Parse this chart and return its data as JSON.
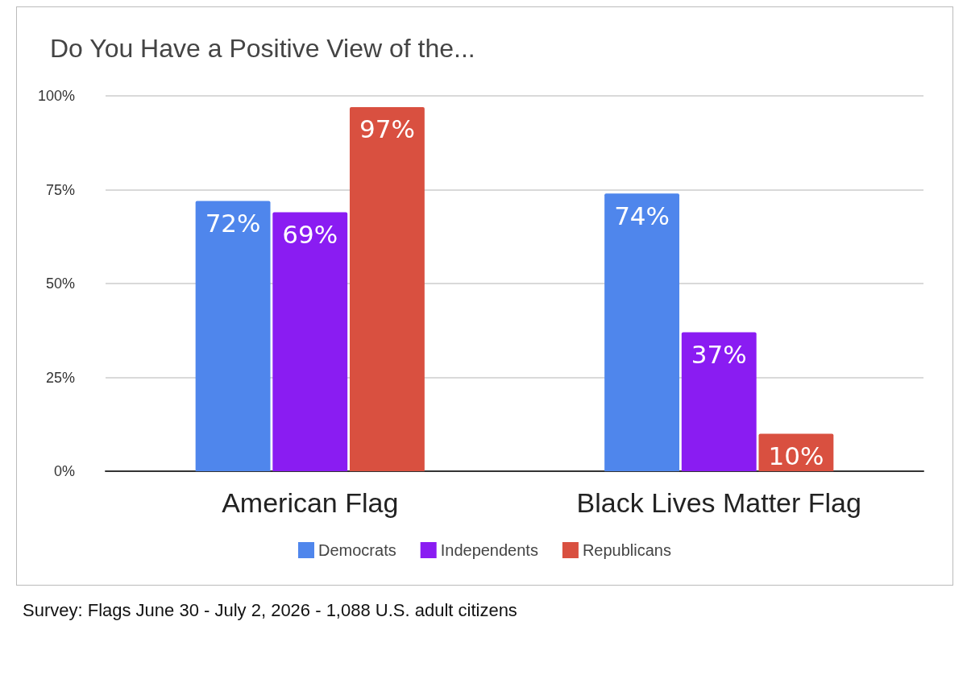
{
  "chart_data": {
    "type": "bar",
    "title": "Do You Have a Positive View of the...",
    "categories": [
      "American Flag",
      "Black Lives Matter Flag"
    ],
    "series": [
      {
        "name": "Democrats",
        "color": "#4f86ec",
        "values": [
          72,
          74
        ],
        "value_labels": [
          "72%",
          "74%"
        ]
      },
      {
        "name": "Independents",
        "color": "#8a1cf2",
        "values": [
          69,
          37
        ],
        "value_labels": [
          "69%",
          "37%"
        ]
      },
      {
        "name": "Republicans",
        "color": "#d95040",
        "values": [
          97,
          10
        ],
        "value_labels": [
          "97%",
          "10%"
        ]
      }
    ],
    "ylim": [
      0,
      100
    ],
    "yticks": [
      {
        "value": 0,
        "label": "0%"
      },
      {
        "value": 25,
        "label": "25%"
      },
      {
        "value": 50,
        "label": "50%"
      },
      {
        "value": 75,
        "label": "75%"
      },
      {
        "value": 100,
        "label": "100%"
      }
    ],
    "grid": "y",
    "legend": "bottom",
    "annotations": [
      "Survey: Flags June 30 - July 2, 2026 - 1,088 U.S. adult citizens"
    ]
  }
}
